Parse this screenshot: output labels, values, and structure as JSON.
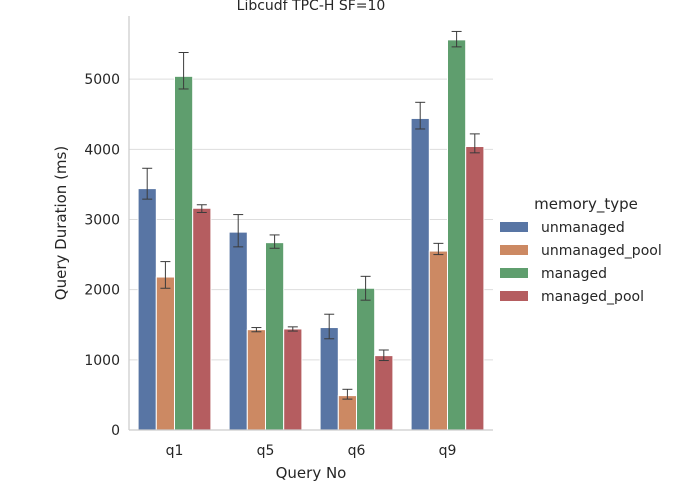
{
  "chart_data": {
    "type": "bar",
    "title": "Libcudf TPC-H SF=10",
    "xlabel": "Query No",
    "ylabel": "Query Duration (ms)",
    "categories": [
      "q1",
      "q5",
      "q6",
      "q9"
    ],
    "ylim": [
      0,
      5900
    ],
    "yticks": [
      0,
      1000,
      2000,
      3000,
      4000,
      5000
    ],
    "grid": "horizontal",
    "legend": {
      "title": "memory_type",
      "placement": "right"
    },
    "series": [
      {
        "name": "unmanaged",
        "color": "#5875a4",
        "values": [
          3440,
          2820,
          1460,
          4440
        ],
        "err_low": [
          3290,
          2610,
          1300,
          4290
        ],
        "err_high": [
          3730,
          3070,
          1650,
          4670
        ]
      },
      {
        "name": "unmanaged_pool",
        "color": "#cc8963",
        "values": [
          2180,
          1430,
          490,
          2550
        ],
        "err_low": [
          2020,
          1400,
          440,
          2500
        ],
        "err_high": [
          2400,
          1460,
          580,
          2660
        ]
      },
      {
        "name": "managed",
        "color": "#5f9e6e",
        "values": [
          5040,
          2670,
          2020,
          5560
        ],
        "err_low": [
          4860,
          2590,
          1850,
          5460
        ],
        "err_high": [
          5380,
          2780,
          2190,
          5680
        ]
      },
      {
        "name": "managed_pool",
        "color": "#b55d60",
        "values": [
          3160,
          1440,
          1060,
          4040
        ],
        "err_low": [
          3100,
          1410,
          990,
          3950
        ],
        "err_high": [
          3210,
          1470,
          1140,
          4220
        ]
      }
    ]
  }
}
